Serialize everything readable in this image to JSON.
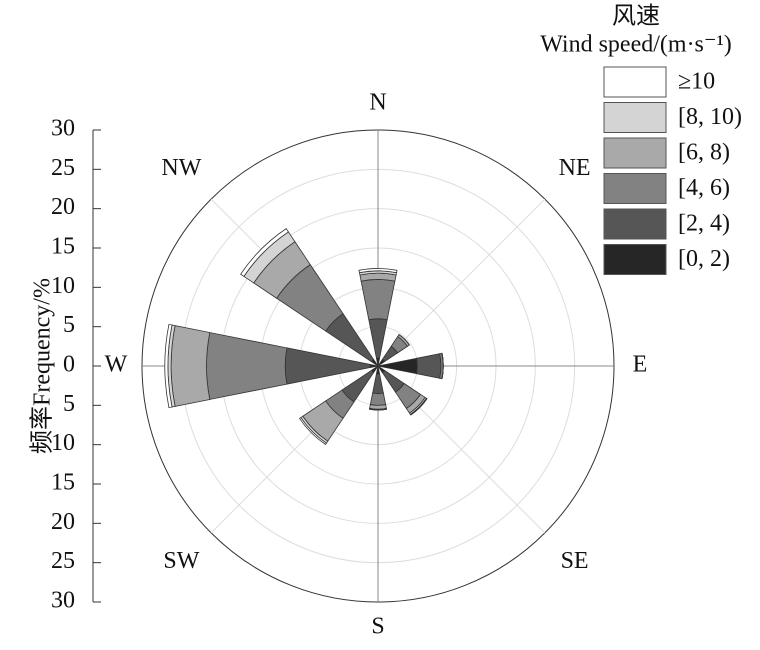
{
  "chart_data": {
    "type": "windrose",
    "legend_title": [
      "风速",
      "Wind speed/(m·s⁻¹)"
    ],
    "ylabel": "频率Frequency/%",
    "directions": [
      "N",
      "NE",
      "E",
      "SE",
      "S",
      "SW",
      "W",
      "NW"
    ],
    "direction_angles": [
      0,
      45,
      90,
      135,
      180,
      225,
      270,
      315
    ],
    "rlim": [
      0,
      30
    ],
    "rticks": [
      0,
      5,
      10,
      15,
      20,
      25,
      30
    ],
    "grid": true,
    "series": [
      {
        "name": "[0, 2)",
        "color": "#262626",
        "values": [
          1,
          1,
          5,
          1,
          1,
          1,
          1,
          1
        ]
      },
      {
        "name": "[2, 4)",
        "color": "#565656",
        "values": [
          5,
          2,
          3,
          3,
          2.5,
          4.5,
          10.8,
          7
        ]
      },
      {
        "name": "[4, 6)",
        "color": "#828282",
        "values": [
          5,
          1.5,
          0.3,
          2.5,
          1.5,
          2.5,
          10,
          7.5
        ]
      },
      {
        "name": "[6, 8)",
        "color": "#a9a9a9",
        "values": [
          0.8,
          0.3,
          0,
          0.7,
          0.5,
          3.5,
          4.5,
          3.5
        ]
      },
      {
        "name": "[8, 10)",
        "color": "#d4d4d4",
        "values": [
          0.3,
          0,
          0,
          0.2,
          0.1,
          0.3,
          0.4,
          1.5
        ]
      },
      {
        "name": "≥10",
        "color": "#ffffff",
        "values": [
          0.3,
          0,
          0,
          0.1,
          0,
          0.2,
          0.4,
          0.5
        ]
      }
    ]
  }
}
